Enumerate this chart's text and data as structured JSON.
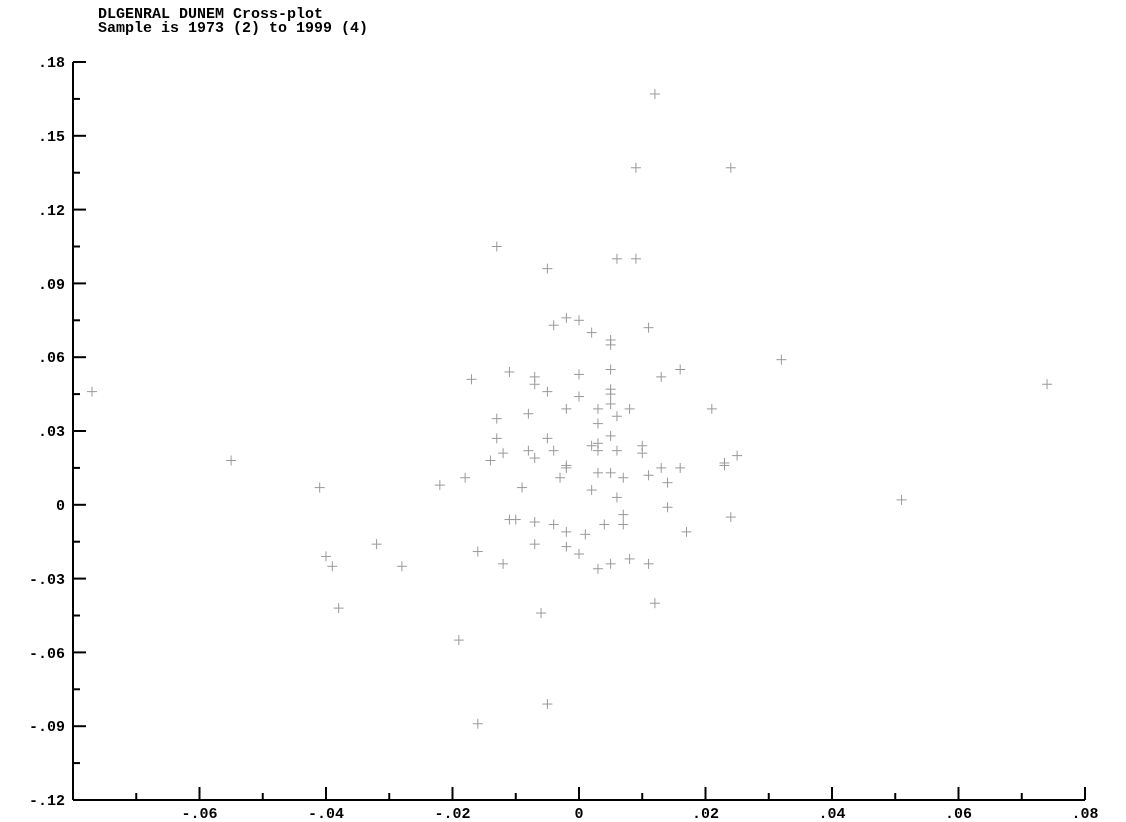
{
  "chart_data": {
    "type": "scatter",
    "title": "DLGENRAL DUNEM Cross-plot",
    "subtitle": "Sample is 1973 (2) to 1999 (4)",
    "marker": "cross",
    "xlim": [
      -0.08,
      0.08
    ],
    "xticks": [
      {
        "value": -0.07,
        "label": null
      },
      {
        "value": -0.06,
        "label": "-.06"
      },
      {
        "value": -0.05,
        "label": null
      },
      {
        "value": -0.04,
        "label": "-.04"
      },
      {
        "value": -0.03,
        "label": null
      },
      {
        "value": -0.02,
        "label": "-.02"
      },
      {
        "value": -0.01,
        "label": null
      },
      {
        "value": 0,
        "label": "0"
      },
      {
        "value": 0.01,
        "label": null
      },
      {
        "value": 0.02,
        "label": ".02"
      },
      {
        "value": 0.03,
        "label": null
      },
      {
        "value": 0.04,
        "label": ".04"
      },
      {
        "value": 0.05,
        "label": null
      },
      {
        "value": 0.06,
        "label": ".06"
      },
      {
        "value": 0.07,
        "label": null
      },
      {
        "value": 0.08,
        "label": ".08"
      }
    ],
    "ylim": [
      -0.12,
      0.18
    ],
    "yticks": [
      {
        "value": -0.12,
        "label": "-.12"
      },
      {
        "value": -0.105,
        "label": null
      },
      {
        "value": -0.09,
        "label": "-.09"
      },
      {
        "value": -0.075,
        "label": null
      },
      {
        "value": -0.06,
        "label": "-.06"
      },
      {
        "value": -0.045,
        "label": null
      },
      {
        "value": -0.03,
        "label": "-.03"
      },
      {
        "value": -0.015,
        "label": null
      },
      {
        "value": 0,
        "label": "0"
      },
      {
        "value": 0.015,
        "label": null
      },
      {
        "value": 0.03,
        "label": ".03"
      },
      {
        "value": 0.045,
        "label": null
      },
      {
        "value": 0.06,
        "label": ".06"
      },
      {
        "value": 0.075,
        "label": null
      },
      {
        "value": 0.09,
        "label": ".09"
      },
      {
        "value": 0.105,
        "label": null
      },
      {
        "value": 0.12,
        "label": ".12"
      },
      {
        "value": 0.135,
        "label": null
      },
      {
        "value": 0.15,
        "label": ".15"
      },
      {
        "value": 0.165,
        "label": null
      },
      {
        "value": 0.18,
        "label": ".18"
      }
    ],
    "series": [
      {
        "color": "#999999",
        "x": [
          -0.077,
          -0.013,
          -0.005,
          -0.004,
          -0.011,
          -0.017,
          -0.007,
          -0.007,
          -0.005,
          -0.008,
          -0.013,
          -0.013,
          -0.005,
          -0.012,
          -0.008,
          -0.004,
          -0.014,
          -0.007,
          -0.055,
          -0.018,
          -0.022,
          -0.009,
          -0.041,
          -0.011,
          -0.01,
          -0.007,
          -0.004,
          -0.007,
          -0.032,
          -0.016,
          -0.04,
          -0.039,
          -0.028,
          -0.012,
          -0.038,
          -0.006,
          -0.019,
          -0.005,
          -0.016,
          0.012,
          0.009,
          0.024,
          0.006,
          0.009,
          -0.002,
          0.0,
          0.002,
          0.005,
          0.005,
          0.011,
          0.032,
          0.016,
          0.013,
          0.005,
          0.0,
          0.0,
          0.005,
          0.005,
          0.005,
          -0.002,
          0.003,
          0.006,
          0.008,
          0.021,
          0.074,
          0.003,
          0.005,
          0.002,
          0.003,
          0.003,
          0.006,
          0.01,
          0.01,
          -0.002,
          -0.002,
          -0.003,
          0.003,
          0.005,
          0.007,
          0.011,
          0.013,
          0.016,
          0.014,
          0.023,
          0.023,
          0.025,
          0.002,
          0.006,
          0.014,
          0.051,
          0.007,
          0.007,
          0.004,
          -0.002,
          0.001,
          0.024,
          0.017,
          -0.002,
          0.0,
          0.003,
          0.005,
          0.008,
          0.011,
          0.012
        ],
        "values": [
          0.046,
          0.105,
          0.096,
          0.073,
          0.054,
          0.051,
          0.052,
          0.049,
          0.046,
          0.037,
          0.035,
          0.027,
          0.027,
          0.021,
          0.022,
          0.022,
          0.018,
          0.019,
          0.018,
          0.011,
          0.008,
          0.007,
          0.007,
          -0.006,
          -0.006,
          -0.007,
          -0.008,
          -0.016,
          -0.016,
          -0.019,
          -0.021,
          -0.025,
          -0.025,
          -0.024,
          -0.042,
          -0.044,
          -0.055,
          -0.081,
          -0.089,
          0.167,
          0.137,
          0.137,
          0.1,
          0.1,
          0.076,
          0.075,
          0.07,
          0.067,
          0.065,
          0.072,
          0.059,
          0.055,
          0.052,
          0.055,
          0.053,
          0.044,
          0.047,
          0.045,
          0.041,
          0.039,
          0.039,
          0.036,
          0.039,
          0.039,
          0.049,
          0.033,
          0.028,
          0.024,
          0.025,
          0.022,
          0.022,
          0.024,
          0.021,
          0.016,
          0.015,
          0.011,
          0.013,
          0.013,
          0.011,
          0.012,
          0.015,
          0.015,
          0.009,
          0.017,
          0.016,
          0.02,
          0.006,
          0.003,
          -0.001,
          0.002,
          -0.004,
          -0.008,
          -0.008,
          -0.011,
          -0.012,
          -0.005,
          -0.011,
          -0.017,
          -0.02,
          -0.026,
          -0.024,
          -0.022,
          -0.024,
          -0.04
        ]
      }
    ]
  }
}
